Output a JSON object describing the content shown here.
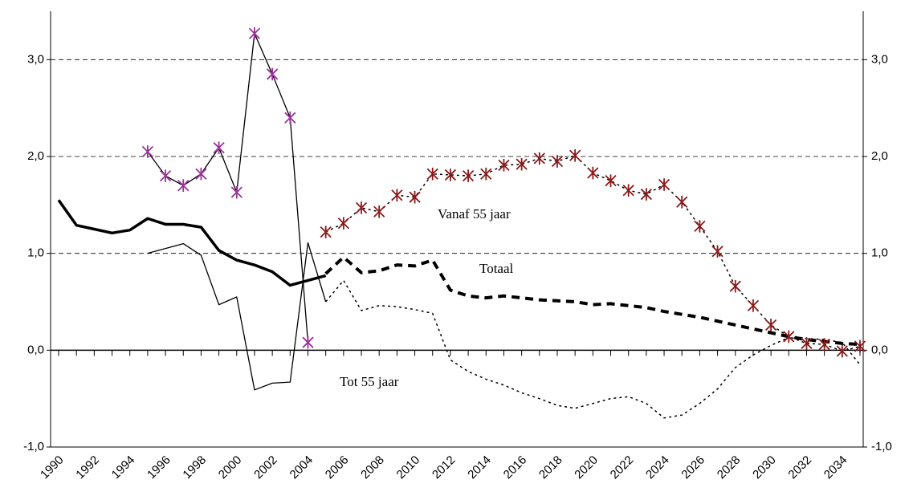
{
  "chart_data": {
    "type": "line",
    "annotations": [
      "Vanaf 55 jaar",
      "Totaal",
      "Tot 55 jaar"
    ],
    "categories": [
      "1990",
      null,
      "1992",
      null,
      "1994",
      null,
      "1996",
      null,
      "1998",
      null,
      "2000",
      null,
      "2002",
      null,
      "2004",
      null,
      "2006",
      null,
      "2008",
      null,
      "2010",
      null,
      "2012",
      null,
      "2014",
      null,
      "2016",
      null,
      "2018",
      null,
      "2020",
      null,
      "2022",
      null,
      "2024",
      null,
      "2026",
      null,
      "2028",
      null,
      "2030",
      null,
      "2032",
      null,
      "2034",
      null
    ],
    "series": [
      {
        "color": "#000000",
        "width": 3.5,
        "dash": "none",
        "values": [
          1.55,
          1.29,
          1.25,
          1.21,
          1.24,
          1.36,
          1.3,
          1.3,
          1.27,
          1.03,
          0.93,
          0.88,
          0.81,
          0.67,
          0.72,
          0.77,
          null,
          null,
          null,
          null,
          null,
          null,
          null,
          null,
          null,
          null,
          null,
          null,
          null,
          null,
          null,
          null,
          null,
          null,
          null,
          null,
          null,
          null,
          null,
          null,
          null,
          null,
          null,
          null,
          null,
          null
        ]
      },
      {
        "color": "#000000",
        "width": 4,
        "dash": "10 7",
        "values": [
          null,
          null,
          null,
          null,
          null,
          null,
          null,
          null,
          null,
          null,
          null,
          null,
          null,
          null,
          null,
          0.79,
          0.96,
          0.8,
          0.82,
          0.88,
          0.87,
          0.93,
          0.62,
          0.56,
          0.54,
          0.56,
          0.54,
          0.52,
          0.51,
          0.5,
          0.47,
          0.48,
          0.46,
          0.44,
          0.4,
          0.37,
          0.34,
          0.3,
          0.26,
          0.22,
          0.18,
          0.14,
          0.11,
          0.09,
          0.07,
          0.06
        ]
      },
      {
        "color": "#000000",
        "width": 1.3,
        "dash": "none",
        "values": [
          null,
          null,
          null,
          null,
          null,
          1.0,
          1.05,
          1.1,
          0.98,
          0.47,
          0.55,
          -0.41,
          -0.34,
          -0.33,
          1.11,
          0.5,
          null,
          null,
          null,
          null,
          null,
          null,
          null,
          null,
          null,
          null,
          null,
          null,
          null,
          null,
          null,
          null,
          null,
          null,
          null,
          null,
          null,
          null,
          null,
          null,
          null,
          null,
          null,
          null,
          null,
          null
        ]
      },
      {
        "color": "#000000",
        "width": 1.5,
        "dash": "3 4",
        "values": [
          null,
          null,
          null,
          null,
          null,
          null,
          null,
          null,
          null,
          null,
          null,
          null,
          null,
          null,
          null,
          0.5,
          0.72,
          0.41,
          0.46,
          0.45,
          0.42,
          0.38,
          -0.1,
          -0.22,
          -0.3,
          -0.36,
          -0.44,
          -0.5,
          -0.57,
          -0.6,
          -0.55,
          -0.5,
          -0.48,
          -0.55,
          -0.7,
          -0.67,
          -0.55,
          -0.4,
          -0.18,
          -0.05,
          0.05,
          0.13,
          0.12,
          0.11,
          0.08,
          -0.15
        ]
      },
      {
        "color": "#000000",
        "width": 1.3,
        "dash": "none",
        "marker": "star",
        "marker_color": "#993399",
        "values": [
          null,
          null,
          null,
          null,
          null,
          2.05,
          1.8,
          1.7,
          1.82,
          2.09,
          1.63,
          3.27,
          2.85,
          2.4,
          0.08,
          null,
          null,
          null,
          null,
          null,
          null,
          null,
          null,
          null,
          null,
          null,
          null,
          null,
          null,
          null,
          null,
          null,
          null,
          null,
          null,
          null,
          null,
          null,
          null,
          null,
          null,
          null,
          null,
          null,
          null,
          null
        ]
      },
      {
        "color": "#000000",
        "width": 1.5,
        "dash": "3 4",
        "marker": "star",
        "marker_color": "#8b1a1a",
        "values": [
          null,
          null,
          null,
          null,
          null,
          null,
          null,
          null,
          null,
          null,
          null,
          null,
          null,
          null,
          null,
          1.22,
          1.31,
          1.47,
          1.43,
          1.6,
          1.58,
          1.82,
          1.81,
          1.8,
          1.82,
          1.91,
          1.92,
          1.98,
          1.95,
          2.01,
          1.83,
          1.75,
          1.65,
          1.61,
          1.71,
          1.53,
          1.28,
          1.02,
          0.66,
          0.46,
          0.26,
          0.14,
          0.07,
          0.06,
          -0.01,
          0.04
        ]
      }
    ],
    "ylim": [
      -1,
      3.5
    ],
    "yticks": [
      {
        "value": -1,
        "label": "-1,0"
      },
      {
        "value": 0,
        "label": "0,0"
      },
      {
        "value": 1,
        "label": "1,0"
      },
      {
        "value": 2,
        "label": "2,0"
      },
      {
        "value": 3,
        "label": "3,0"
      }
    ],
    "y2lim": [
      -1,
      3.5
    ],
    "y2ticks": [
      {
        "value": -1,
        "label": "-1,0"
      },
      {
        "value": 0,
        "label": "0,0"
      },
      {
        "value": 1,
        "label": "1,0"
      },
      {
        "value": 2,
        "label": "2,0"
      },
      {
        "value": 3,
        "label": "3,0"
      }
    ],
    "grid": true
  }
}
